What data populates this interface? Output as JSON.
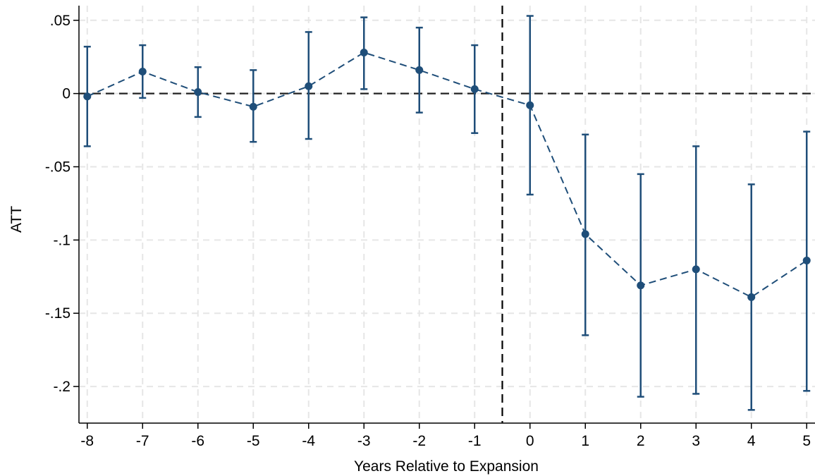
{
  "chart_data": {
    "type": "scatter",
    "title": "",
    "xlabel": "Years Relative to Expansion",
    "ylabel": "ATT",
    "xlim": [
      -8.15,
      5.15
    ],
    "ylim": [
      -0.225,
      0.06
    ],
    "x_ticks": [
      -8,
      -7,
      -6,
      -5,
      -4,
      -3,
      -2,
      -1,
      0,
      1,
      2,
      3,
      4,
      5
    ],
    "x_tick_labels": [
      "-8",
      "-7",
      "-6",
      "-5",
      "-4",
      "-3",
      "-2",
      "-1",
      "0",
      "1",
      "2",
      "3",
      "4",
      "5"
    ],
    "y_ticks": [
      0.05,
      0,
      -0.05,
      -0.1,
      -0.15,
      -0.2
    ],
    "y_tick_labels": [
      ".05",
      "0",
      "-.05",
      "-.1",
      "-.15",
      "-.2"
    ],
    "grid": true,
    "reference_lines": {
      "horizontal_y": 0,
      "vertical_x": -0.5
    },
    "colors": {
      "series": "#1f4e79",
      "reference": "#222222",
      "grid": "#e6e6e6"
    },
    "series": [
      {
        "x": [
          -8,
          -7,
          -6,
          -5,
          -4,
          -3,
          -2,
          -1,
          0,
          1,
          2,
          3,
          4,
          5
        ],
        "values": [
          -0.002,
          0.015,
          0.001,
          -0.009,
          0.005,
          0.028,
          0.016,
          0.003,
          -0.008,
          -0.096,
          -0.131,
          -0.12,
          -0.139,
          -0.114
        ],
        "ci_lower": [
          -0.036,
          -0.003,
          -0.016,
          -0.033,
          -0.031,
          0.003,
          -0.013,
          -0.027,
          -0.069,
          -0.165,
          -0.207,
          -0.205,
          -0.216,
          -0.203
        ],
        "ci_upper": [
          0.032,
          0.033,
          0.018,
          0.016,
          0.042,
          0.052,
          0.045,
          0.033,
          0.053,
          -0.028,
          -0.055,
          -0.036,
          -0.062,
          -0.026
        ]
      }
    ]
  }
}
